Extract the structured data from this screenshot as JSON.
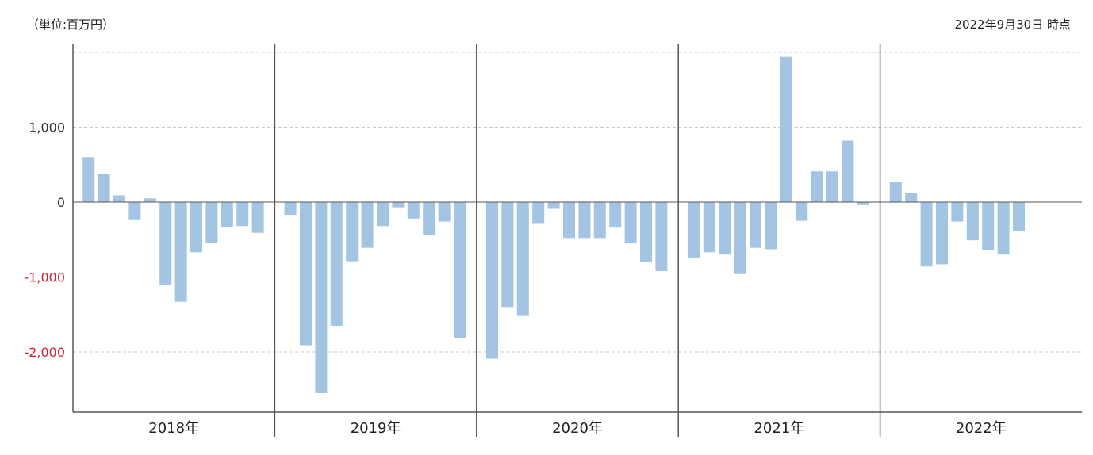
{
  "header": {
    "unit": "（単位:百万円）",
    "as_of": "2022年9月30日 時点"
  },
  "colors": {
    "bar": "#a3c4e3",
    "positive_tick": "#333333",
    "negative_tick": "#d42030",
    "grid": "#c8c8c8",
    "axis": "#555555"
  },
  "chart_data": {
    "type": "bar",
    "xlabel": "",
    "ylabel": "",
    "ylim": [
      -2800,
      2000
    ],
    "yticks": [
      {
        "value": 1000,
        "label": "1,000"
      },
      {
        "value": 0,
        "label": "0"
      },
      {
        "value": -1000,
        "label": "-1,000"
      },
      {
        "value": -2000,
        "label": "-2,000"
      }
    ],
    "gridlines": [
      1000,
      -1000,
      -2000,
      2000
    ],
    "groups": [
      {
        "label": "2018年",
        "values": [
          600,
          380,
          90,
          -230,
          50,
          -1100,
          -1330,
          -670,
          -540,
          -330,
          -320,
          -410
        ]
      },
      {
        "label": "2019年",
        "values": [
          -170,
          -1910,
          -2550,
          -1650,
          -790,
          -610,
          -320,
          -70,
          -220,
          -440,
          -260,
          -1810
        ]
      },
      {
        "label": "2020年",
        "values": [
          -2090,
          -1400,
          -1520,
          -280,
          -90,
          -480,
          -480,
          -480,
          -340,
          -550,
          -800,
          -920
        ]
      },
      {
        "label": "2021年",
        "values": [
          -740,
          -670,
          -700,
          -960,
          -610,
          -630,
          1940,
          -250,
          410,
          410,
          820,
          -30
        ]
      },
      {
        "label": "2022年",
        "values": [
          270,
          120,
          -860,
          -830,
          -260,
          -510,
          -640,
          -700,
          -390
        ]
      }
    ]
  }
}
